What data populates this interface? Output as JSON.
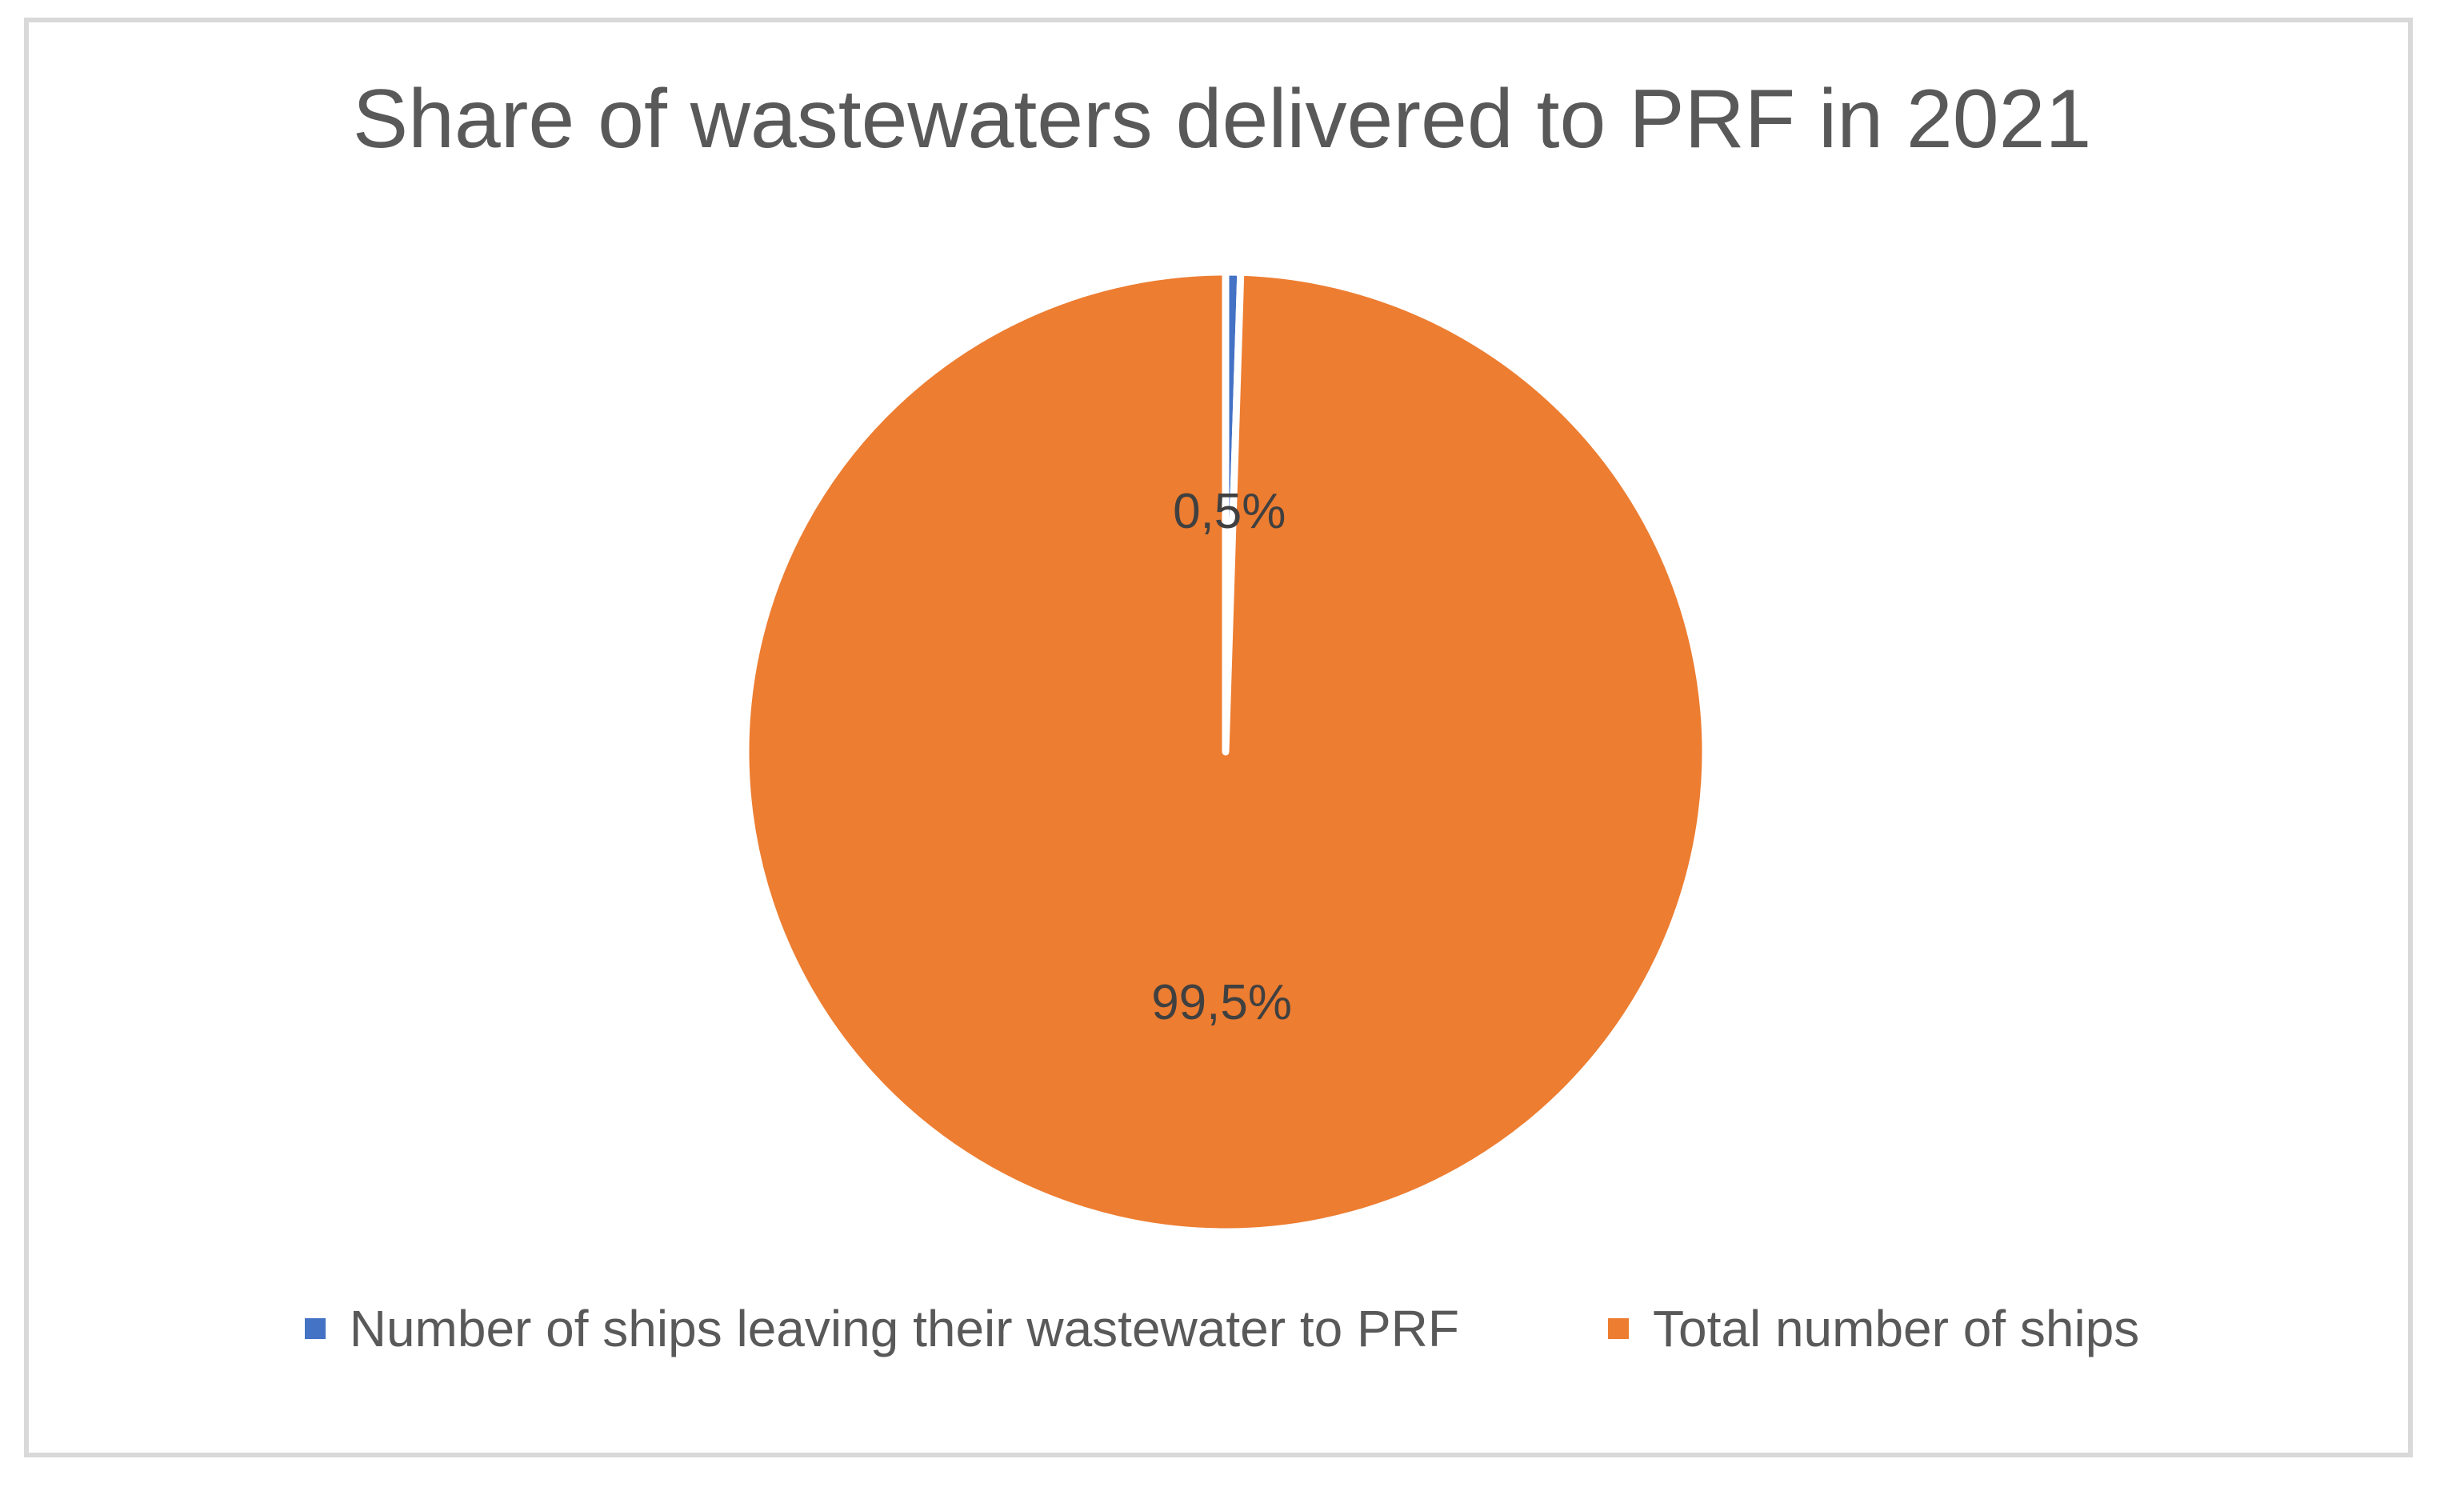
{
  "chart_data": {
    "type": "pie",
    "title": "Share of wastewaters delivered to PRF in 2021",
    "slices": [
      {
        "label": "Number of ships leaving their wastewater to PRF",
        "value": 0.5,
        "display": "0,5%",
        "color": "#4472C4"
      },
      {
        "label": "Total number of ships",
        "value": 99.5,
        "display": "99,5%",
        "color": "#ED7D31"
      }
    ],
    "start_angle_deg": 0,
    "direction": "clockwise",
    "legend_position": "bottom"
  }
}
